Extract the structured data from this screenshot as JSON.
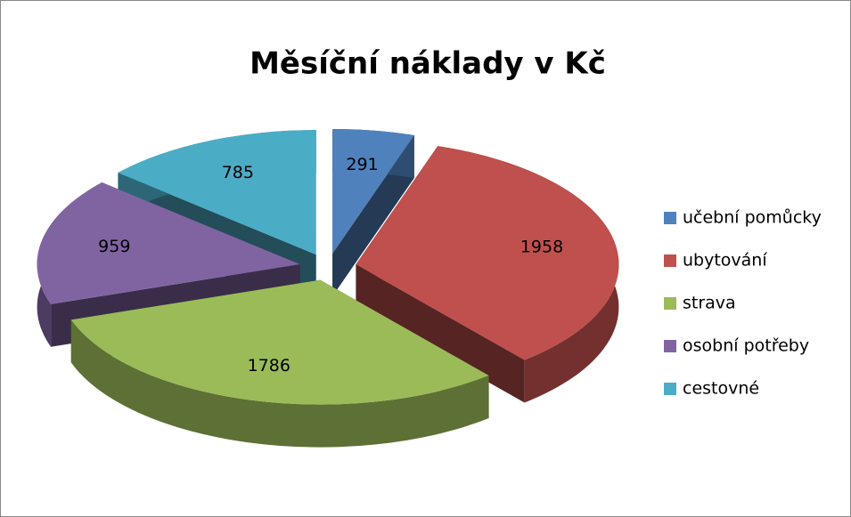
{
  "chart_data": {
    "type": "pie",
    "title": "Měsíční náklady v Kč",
    "categories": [
      "učební pomůcky",
      "ubytování",
      "strava",
      "osobní potřeby",
      "cestovné"
    ],
    "values": [
      291,
      1958,
      1786,
      959,
      785
    ],
    "colors": [
      "#4f81bd",
      "#c0504d",
      "#9bbb59",
      "#8064a2",
      "#4bacc6"
    ],
    "legend": "right"
  }
}
